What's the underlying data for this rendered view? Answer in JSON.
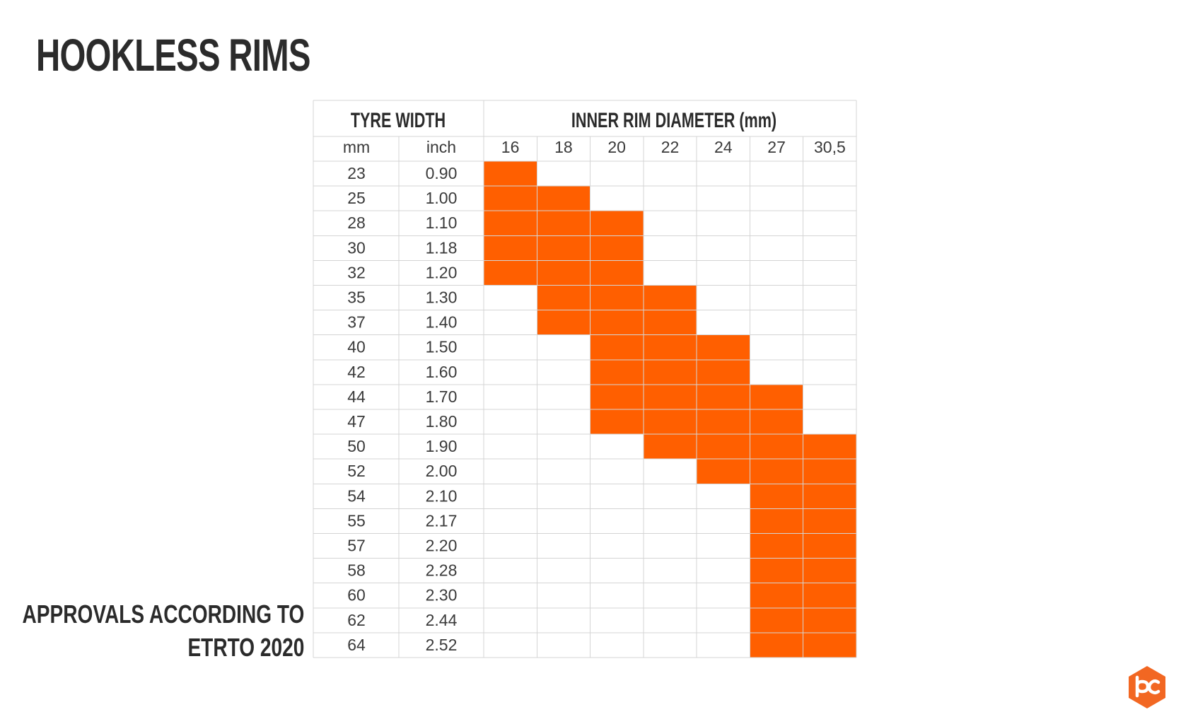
{
  "title": "HOOKLESS RIMS",
  "caption": {
    "line1": "APPROVALS ACCORDING TO",
    "line2": "ETRTO 2020"
  },
  "colors": {
    "accent": "#ff5f00",
    "text": "#2b2b2b",
    "grid": "#d4d4d4"
  },
  "logo": {
    "icon": "bc-hexagon-logo-icon",
    "color": "#f26722"
  },
  "chart_data": {
    "type": "table",
    "group_headers": {
      "tyre_width": "TYRE WIDTH",
      "inner_rim_diameter": "INNER RIM DIAMETER (mm)"
    },
    "sub_headers": {
      "mm": "mm",
      "inch": "inch"
    },
    "rim_diameters": [
      "16",
      "18",
      "20",
      "22",
      "24",
      "27",
      "30,5"
    ],
    "rows": [
      {
        "mm": "23",
        "inch": "0.90",
        "approved": [
          1,
          0,
          0,
          0,
          0,
          0,
          0
        ]
      },
      {
        "mm": "25",
        "inch": "1.00",
        "approved": [
          1,
          1,
          0,
          0,
          0,
          0,
          0
        ]
      },
      {
        "mm": "28",
        "inch": "1.10",
        "approved": [
          1,
          1,
          1,
          0,
          0,
          0,
          0
        ]
      },
      {
        "mm": "30",
        "inch": "1.18",
        "approved": [
          1,
          1,
          1,
          0,
          0,
          0,
          0
        ]
      },
      {
        "mm": "32",
        "inch": "1.20",
        "approved": [
          1,
          1,
          1,
          0,
          0,
          0,
          0
        ]
      },
      {
        "mm": "35",
        "inch": "1.30",
        "approved": [
          0,
          1,
          1,
          1,
          0,
          0,
          0
        ]
      },
      {
        "mm": "37",
        "inch": "1.40",
        "approved": [
          0,
          1,
          1,
          1,
          0,
          0,
          0
        ]
      },
      {
        "mm": "40",
        "inch": "1.50",
        "approved": [
          0,
          0,
          1,
          1,
          1,
          0,
          0
        ]
      },
      {
        "mm": "42",
        "inch": "1.60",
        "approved": [
          0,
          0,
          1,
          1,
          1,
          0,
          0
        ]
      },
      {
        "mm": "44",
        "inch": "1.70",
        "approved": [
          0,
          0,
          1,
          1,
          1,
          1,
          0
        ]
      },
      {
        "mm": "47",
        "inch": "1.80",
        "approved": [
          0,
          0,
          1,
          1,
          1,
          1,
          0
        ]
      },
      {
        "mm": "50",
        "inch": "1.90",
        "approved": [
          0,
          0,
          0,
          1,
          1,
          1,
          1
        ]
      },
      {
        "mm": "52",
        "inch": "2.00",
        "approved": [
          0,
          0,
          0,
          0,
          1,
          1,
          1
        ]
      },
      {
        "mm": "54",
        "inch": "2.10",
        "approved": [
          0,
          0,
          0,
          0,
          0,
          1,
          1
        ]
      },
      {
        "mm": "55",
        "inch": "2.17",
        "approved": [
          0,
          0,
          0,
          0,
          0,
          1,
          1
        ]
      },
      {
        "mm": "57",
        "inch": "2.20",
        "approved": [
          0,
          0,
          0,
          0,
          0,
          1,
          1
        ]
      },
      {
        "mm": "58",
        "inch": "2.28",
        "approved": [
          0,
          0,
          0,
          0,
          0,
          1,
          1
        ]
      },
      {
        "mm": "60",
        "inch": "2.30",
        "approved": [
          0,
          0,
          0,
          0,
          0,
          1,
          1
        ]
      },
      {
        "mm": "62",
        "inch": "2.44",
        "approved": [
          0,
          0,
          0,
          0,
          0,
          1,
          1
        ]
      },
      {
        "mm": "64",
        "inch": "2.52",
        "approved": [
          0,
          0,
          0,
          0,
          0,
          1,
          1
        ]
      }
    ]
  }
}
